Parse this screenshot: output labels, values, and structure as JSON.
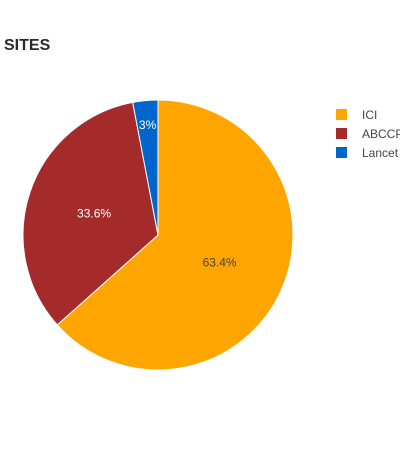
{
  "chart_data": {
    "type": "pie",
    "title": "SITES",
    "categories": [
      "ICI",
      "ABCCP",
      "Lancet"
    ],
    "values": [
      63.4,
      33.6,
      3
    ],
    "labels": [
      "63.4%",
      "33.6%",
      "3%"
    ],
    "colors": [
      "#FFA500",
      "#A52A2A",
      "#0066CC"
    ],
    "label_colors": [
      "#444444",
      "#ffffff",
      "#ffffff"
    ],
    "legend_position": "top-right",
    "start": "12 o'clock, clockwise"
  }
}
